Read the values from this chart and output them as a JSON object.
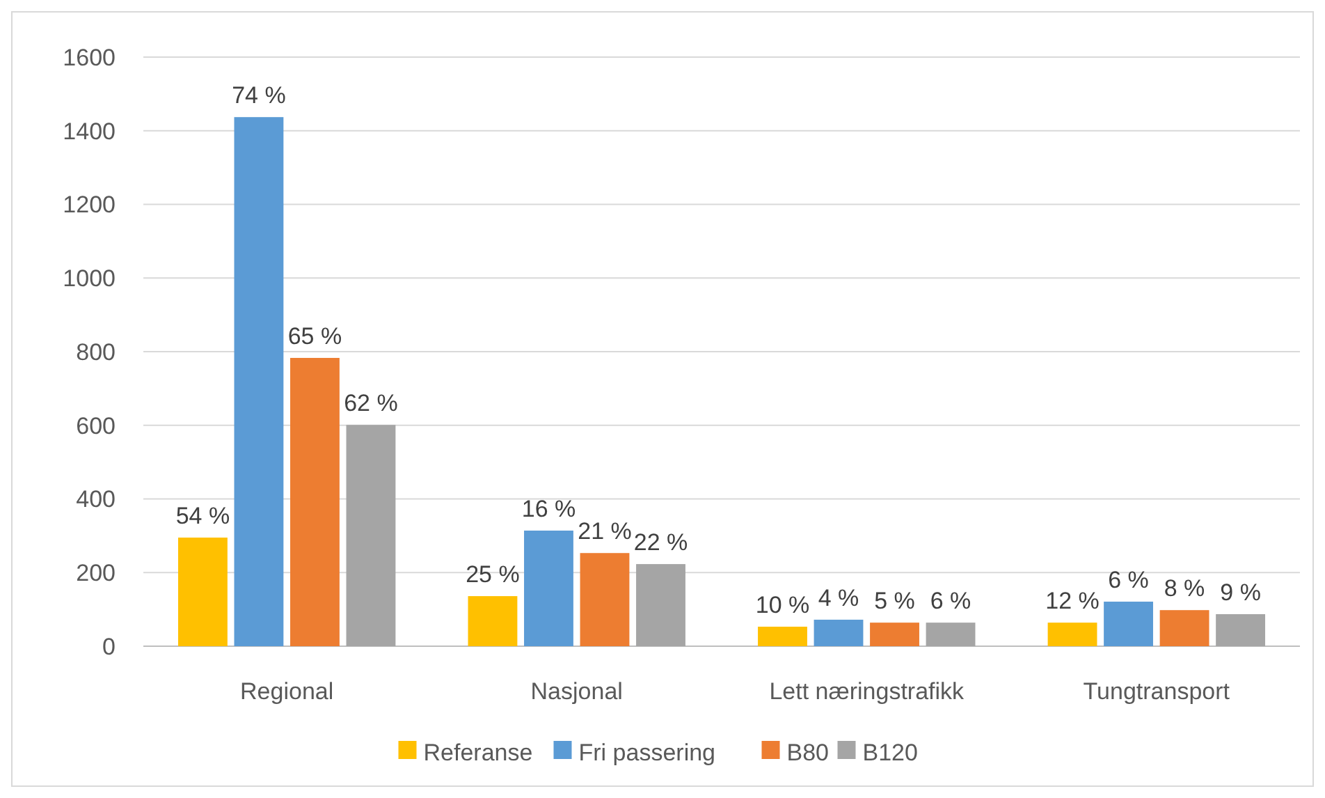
{
  "chart_data": {
    "type": "bar",
    "categories": [
      "Regional",
      "Nasjonal",
      "Lett næringstrafikk",
      "Tungtransport"
    ],
    "series": [
      {
        "name": "Referanse",
        "color": "#ffc000",
        "values": [
          295,
          136,
          53,
          64
        ]
      },
      {
        "name": "Fri passering",
        "color": "#5b9bd5",
        "values": [
          1437,
          314,
          72,
          121
        ]
      },
      {
        "name": "B80",
        "color": "#ed7d31",
        "values": [
          783,
          253,
          64,
          98
        ]
      },
      {
        "name": "B120",
        "color": "#a5a5a5",
        "values": [
          601,
          223,
          64,
          87
        ]
      }
    ],
    "annotations": [
      {
        "text": "54 %",
        "y": 295
      },
      {
        "text": "74 %",
        "y": 1437
      },
      {
        "text": "65 %",
        "y": 783
      },
      {
        "text": "62 %",
        "y": 601
      },
      {
        "text": "25 %",
        "y": 136
      },
      {
        "text": "16 %",
        "y": 314
      },
      {
        "text": "21 %",
        "y": 253
      },
      {
        "text": "22 %",
        "y": 223
      },
      {
        "text": "10 %",
        "y": 53
      },
      {
        "text": "4 %",
        "y": 72
      },
      {
        "text": "5 %",
        "y": 64
      },
      {
        "text": "6 %",
        "y": 64
      },
      {
        "text": "12 %",
        "y": 64
      },
      {
        "text": "6 %",
        "y": 121
      },
      {
        "text": "8 %",
        "y": 98
      },
      {
        "text": "9 %",
        "y": 87
      }
    ],
    "ylim": [
      0,
      1600
    ],
    "yticks": [
      0,
      200,
      400,
      600,
      800,
      1000,
      1200,
      1400,
      1600
    ],
    "grid": "y",
    "legend": "bottom"
  }
}
